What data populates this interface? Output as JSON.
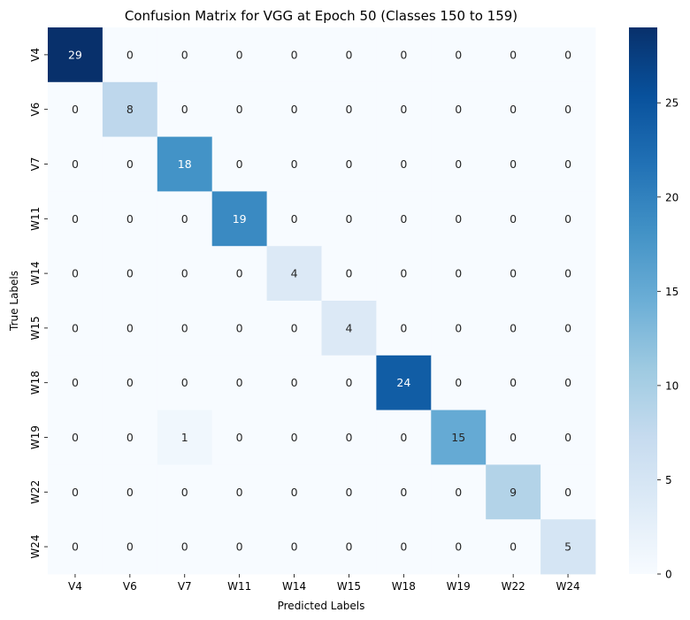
{
  "chart_data": {
    "type": "heatmap",
    "title": "Confusion Matrix for VGG at Epoch 50 (Classes 150 to 159)",
    "xlabel": "Predicted Labels",
    "ylabel": "True Labels",
    "x_categories": [
      "V4",
      "V6",
      "V7",
      "W11",
      "W14",
      "W15",
      "W18",
      "W19",
      "W22",
      "W24"
    ],
    "y_categories": [
      "V4",
      "V6",
      "V7",
      "W11",
      "W14",
      "W15",
      "W18",
      "W19",
      "W22",
      "W24"
    ],
    "values": [
      [
        29,
        0,
        0,
        0,
        0,
        0,
        0,
        0,
        0,
        0
      ],
      [
        0,
        8,
        0,
        0,
        0,
        0,
        0,
        0,
        0,
        0
      ],
      [
        0,
        0,
        18,
        0,
        0,
        0,
        0,
        0,
        0,
        0
      ],
      [
        0,
        0,
        0,
        19,
        0,
        0,
        0,
        0,
        0,
        0
      ],
      [
        0,
        0,
        0,
        0,
        4,
        0,
        0,
        0,
        0,
        0
      ],
      [
        0,
        0,
        0,
        0,
        0,
        4,
        0,
        0,
        0,
        0
      ],
      [
        0,
        0,
        0,
        0,
        0,
        0,
        24,
        0,
        0,
        0
      ],
      [
        0,
        0,
        1,
        0,
        0,
        0,
        0,
        15,
        0,
        0
      ],
      [
        0,
        0,
        0,
        0,
        0,
        0,
        0,
        0,
        9,
        0
      ],
      [
        0,
        0,
        0,
        0,
        0,
        0,
        0,
        0,
        0,
        5
      ]
    ],
    "colormap": "Blues",
    "color_range": [
      0,
      29
    ],
    "colorbar_ticks": [
      0,
      5,
      10,
      15,
      20,
      25
    ]
  }
}
